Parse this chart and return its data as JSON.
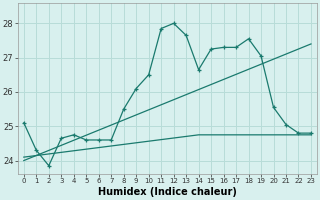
{
  "title": "",
  "xlabel": "Humidex (Indice chaleur)",
  "ylabel": "",
  "bg_color": "#d8f0ee",
  "grid_color": "#b8dcd8",
  "line_color": "#1a7a6e",
  "x_ticks": [
    0,
    1,
    2,
    3,
    4,
    5,
    6,
    7,
    8,
    9,
    10,
    11,
    12,
    13,
    14,
    15,
    16,
    17,
    18,
    19,
    20,
    21,
    22,
    23
  ],
  "y_ticks": [
    24,
    25,
    26,
    27,
    28
  ],
  "ylim": [
    23.6,
    28.6
  ],
  "xlim": [
    -0.5,
    23.5
  ],
  "series1_x": [
    0,
    1,
    2,
    3,
    4,
    5,
    6,
    7,
    8,
    9,
    10,
    11,
    12,
    13,
    14,
    15,
    16,
    17,
    18,
    19,
    20,
    21,
    22,
    23
  ],
  "series1_y": [
    25.1,
    24.3,
    23.85,
    24.65,
    24.75,
    24.6,
    24.6,
    24.6,
    25.5,
    26.1,
    26.5,
    27.85,
    28.0,
    27.65,
    26.65,
    27.25,
    27.3,
    27.3,
    27.55,
    27.05,
    25.55,
    25.05,
    24.8,
    24.8
  ],
  "series2_x": [
    0,
    14,
    23
  ],
  "series2_y": [
    24.1,
    24.75,
    24.75
  ],
  "series3_x": [
    0,
    23
  ],
  "series3_y": [
    24.0,
    27.4
  ]
}
